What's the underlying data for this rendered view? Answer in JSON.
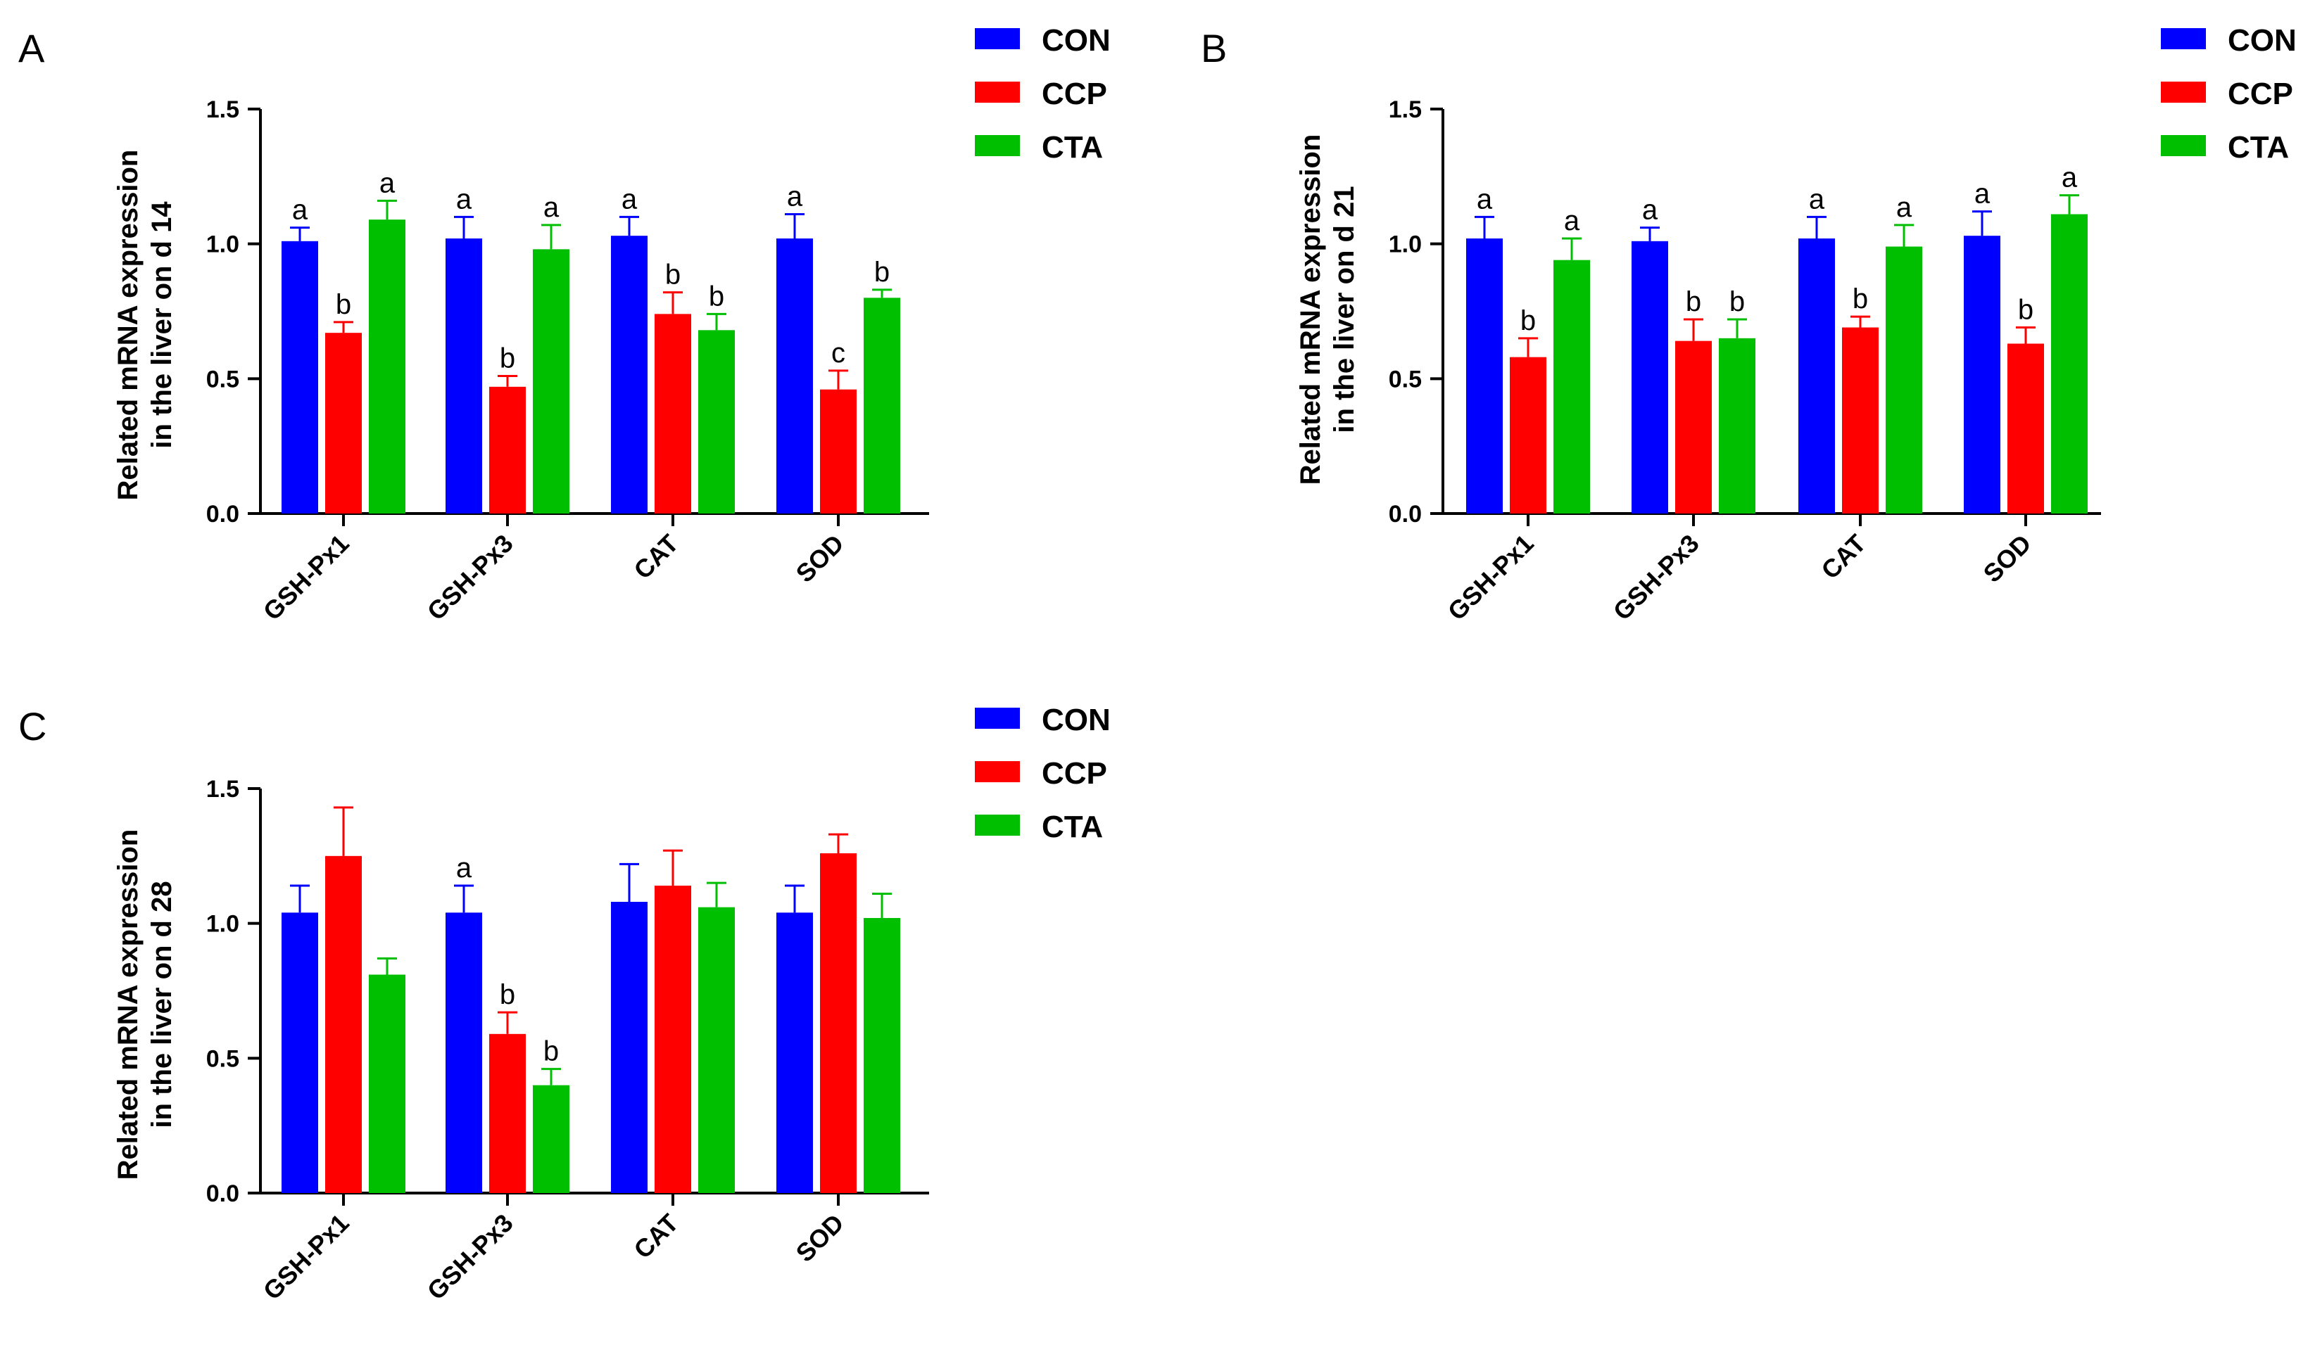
{
  "colors": {
    "CON": "#0000ff",
    "CCP": "#ff0000",
    "CTA": "#00bf00",
    "axis": "#000000"
  },
  "chart_data": [
    {
      "panel": "A",
      "type": "bar",
      "ylabel_lines": [
        "Related mRNA expression",
        "in the liver on d 14"
      ],
      "ylim": [
        0,
        1.5
      ],
      "yticks": [
        "0.0",
        "0.5",
        "1.0",
        "1.5"
      ],
      "categories": [
        "GSH-Px1",
        "GSH-Px3",
        "CAT",
        "SOD"
      ],
      "legend": [
        "CON",
        "CCP",
        "CTA"
      ],
      "series": [
        {
          "name": "CON",
          "values": [
            1.01,
            1.02,
            1.03,
            1.02
          ],
          "errors": [
            0.05,
            0.08,
            0.07,
            0.09
          ],
          "letters": [
            "a",
            "a",
            "a",
            "a"
          ]
        },
        {
          "name": "CCP",
          "values": [
            0.67,
            0.47,
            0.74,
            0.46
          ],
          "errors": [
            0.04,
            0.04,
            0.08,
            0.07
          ],
          "letters": [
            "b",
            "b",
            "b",
            "c"
          ]
        },
        {
          "name": "CTA",
          "values": [
            1.09,
            0.98,
            0.68,
            0.8
          ],
          "errors": [
            0.07,
            0.09,
            0.06,
            0.03
          ],
          "letters": [
            "a",
            "a",
            "b",
            "b"
          ]
        }
      ]
    },
    {
      "panel": "B",
      "type": "bar",
      "ylabel_lines": [
        "Related mRNA expression",
        "in the liver on d 21"
      ],
      "ylim": [
        0,
        1.5
      ],
      "yticks": [
        "0.0",
        "0.5",
        "1.0",
        "1.5"
      ],
      "categories": [
        "GSH-Px1",
        "GSH-Px3",
        "CAT",
        "SOD"
      ],
      "legend": [
        "CON",
        "CCP",
        "CTA"
      ],
      "series": [
        {
          "name": "CON",
          "values": [
            1.02,
            1.01,
            1.02,
            1.03
          ],
          "errors": [
            0.08,
            0.05,
            0.08,
            0.09
          ],
          "letters": [
            "a",
            "a",
            "a",
            "a"
          ]
        },
        {
          "name": "CCP",
          "values": [
            0.58,
            0.64,
            0.69,
            0.63
          ],
          "errors": [
            0.07,
            0.08,
            0.04,
            0.06
          ],
          "letters": [
            "b",
            "b",
            "b",
            "b"
          ]
        },
        {
          "name": "CTA",
          "values": [
            0.94,
            0.65,
            0.99,
            1.11
          ],
          "errors": [
            0.08,
            0.07,
            0.08,
            0.07
          ],
          "letters": [
            "a",
            "b",
            "a",
            "a"
          ]
        }
      ]
    },
    {
      "panel": "C",
      "type": "bar",
      "ylabel_lines": [
        "Related mRNA expression",
        "in the liver on d 28"
      ],
      "ylim": [
        0,
        1.5
      ],
      "yticks": [
        "0.0",
        "0.5",
        "1.0",
        "1.5"
      ],
      "categories": [
        "GSH-Px1",
        "GSH-Px3",
        "CAT",
        "SOD"
      ],
      "legend": [
        "CON",
        "CCP",
        "CTA"
      ],
      "series": [
        {
          "name": "CON",
          "values": [
            1.04,
            1.04,
            1.08,
            1.04
          ],
          "errors": [
            0.1,
            0.1,
            0.14,
            0.1
          ],
          "letters": [
            "",
            "a",
            "",
            ""
          ]
        },
        {
          "name": "CCP",
          "values": [
            1.25,
            0.59,
            1.14,
            1.26
          ],
          "errors": [
            0.18,
            0.08,
            0.13,
            0.07
          ],
          "letters": [
            "",
            "b",
            "",
            ""
          ]
        },
        {
          "name": "CTA",
          "values": [
            0.81,
            0.4,
            1.06,
            1.02
          ],
          "errors": [
            0.06,
            0.06,
            0.09,
            0.09
          ],
          "letters": [
            "",
            "b",
            "",
            ""
          ]
        }
      ]
    }
  ]
}
